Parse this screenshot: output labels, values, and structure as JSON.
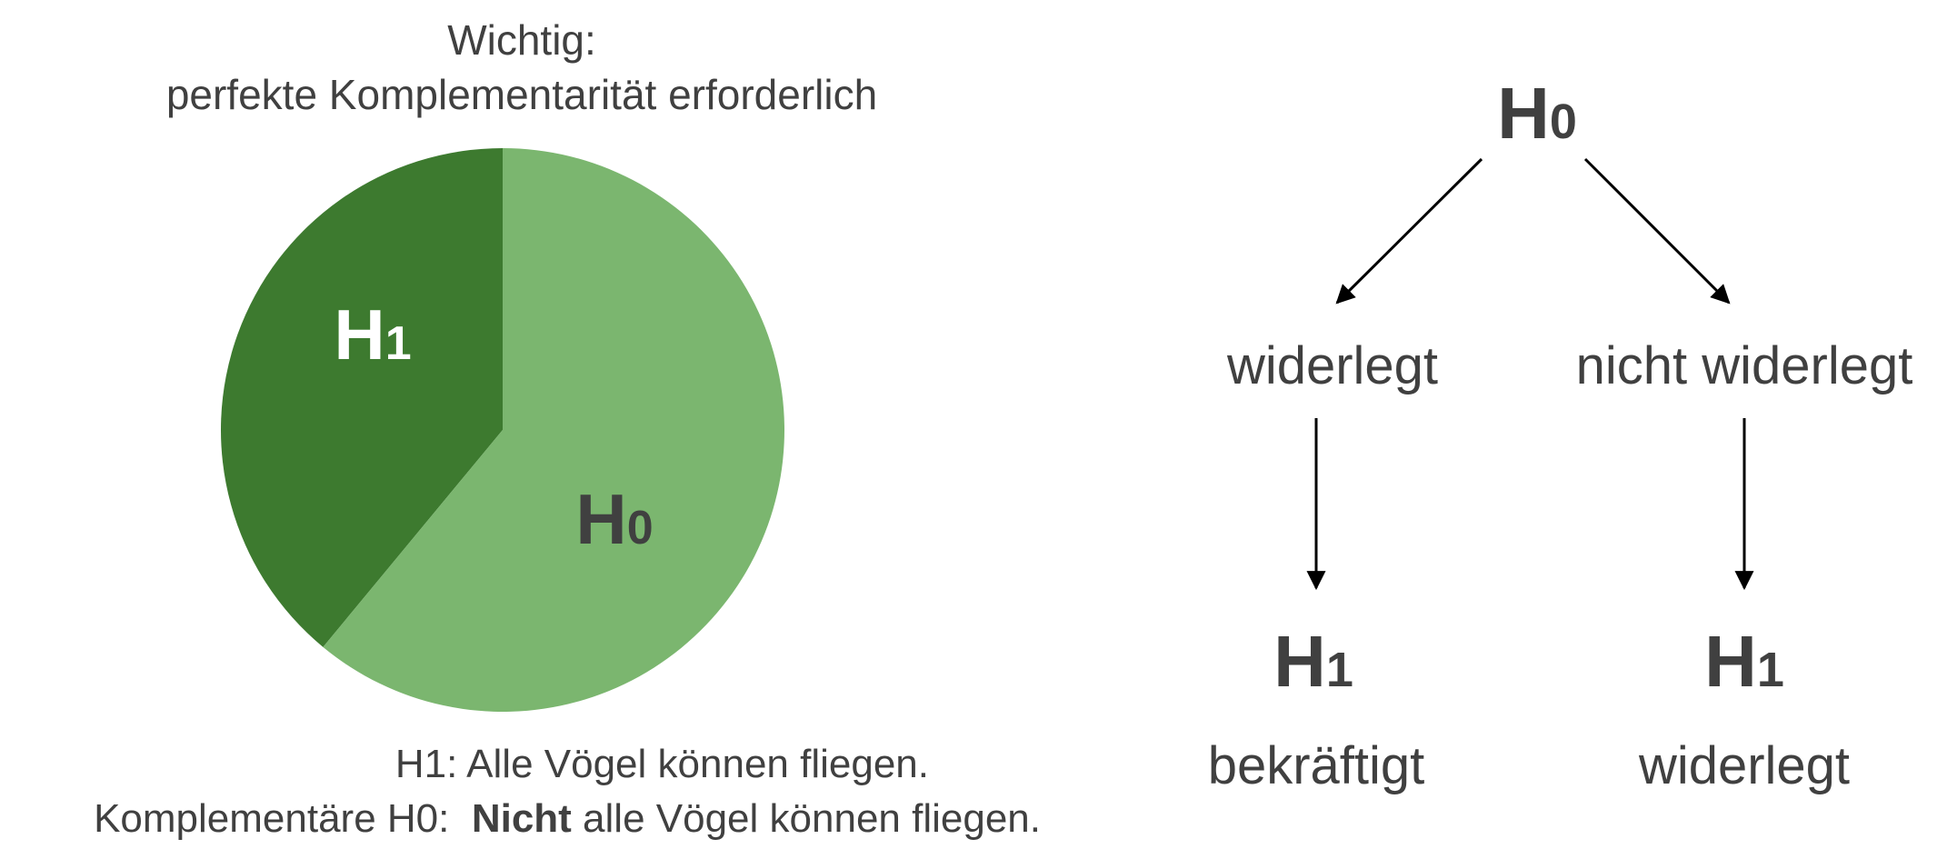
{
  "title": {
    "line1": "Wichtig:",
    "line2": "perfekte Komplementarität erforderlich"
  },
  "pie": {
    "slices": [
      {
        "label": "H",
        "sub": "1",
        "share": 39,
        "color": "#3d7a2f",
        "label_color": "#ffffff"
      },
      {
        "label": "H",
        "sub": "0",
        "share": 61,
        "color": "#7bb66f",
        "label_color": "#404040"
      }
    ]
  },
  "legend": {
    "line1": "H1:  Alle Vögel können fliegen.",
    "line2_prefix": "Komplementäre H0:  ",
    "line2_bold": "Nicht",
    "line2_rest": " alle Vögel können fliegen."
  },
  "tree": {
    "root": {
      "label": "H",
      "sub": "0"
    },
    "left": {
      "outcome": "widerlegt",
      "result_label": "H",
      "result_sub": "1",
      "result_state": "bekräftigt"
    },
    "right": {
      "outcome": "nicht widerlegt",
      "result_label": "H",
      "result_sub": "1",
      "result_state": "widerlegt"
    }
  },
  "colors": {
    "text": "#404040",
    "arrow": "#000000"
  }
}
